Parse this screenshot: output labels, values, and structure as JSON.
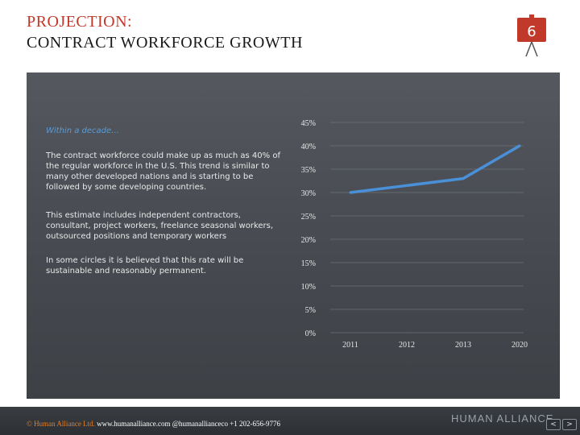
{
  "header": {
    "title_line1": "PROJECTION:",
    "title_line2": "CONTRACT WORKFORCE GROWTH",
    "slide_number": "6"
  },
  "content": {
    "intro": "Within a decade…",
    "paragraphs": [
      "The contract workforce could make up as much as 40% of the regular workforce in the U.S. This trend is similar to many other developed nations and is starting to be followed by some developing countries.",
      "This estimate includes independent contractors, consultant, project workers, freelance seasonal workers, outsourced positions and temporary workers",
      "In some circles it is believed that this rate will be sustainable and reasonably permanent."
    ]
  },
  "chart_data": {
    "type": "line",
    "categories": [
      "2011",
      "2012",
      "2013",
      "2020"
    ],
    "series": [
      {
        "values": [
          30,
          31.5,
          33,
          40
        ],
        "color": "#4a90d9"
      }
    ],
    "y_ticks": [
      "0%",
      "5%",
      "10%",
      "15%",
      "20%",
      "25%",
      "30%",
      "35%",
      "40%",
      "45%"
    ],
    "ylim": [
      0,
      45
    ],
    "grid": true
  },
  "footer": {
    "brand": "© Human Alliance Ltd.",
    "rest": " www.humanalliance.com @humanallianceco +1 202-656-9776",
    "logo_text": "HUMAN ALLIANCE",
    "prev_label": "<",
    "next_label": ">"
  },
  "colors": {
    "title_accent": "#c0392b",
    "intro_text": "#5b9bd5",
    "series_line": "#4a90d9"
  }
}
